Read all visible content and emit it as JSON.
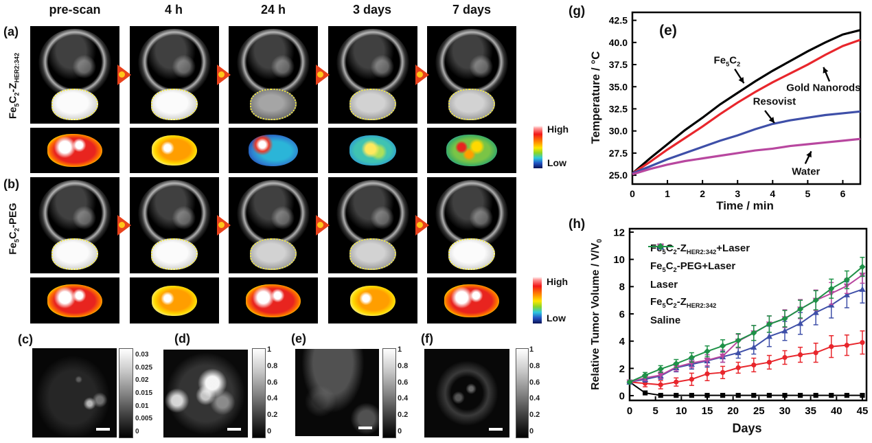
{
  "figure": {
    "timepoints": [
      "pre-scan",
      "4 h",
      "24 h",
      "3 days",
      "7 days"
    ],
    "panel_a": {
      "label": "(a)",
      "row_label_html": "Fe<sub>5</sub>C<sub>2</sub>-Z<sub>HER2:342</sub>",
      "colorbar": {
        "high": "High",
        "low": "Low"
      },
      "mri_tumor": [
        "bright",
        "bright",
        "dim",
        "medium",
        "medium"
      ],
      "heatmap": [
        "heat-hot",
        "heat-warm",
        "heat-cold",
        "heat-cool",
        "heat-mixed"
      ]
    },
    "panel_b": {
      "label": "(b)",
      "row_label_html": "Fe<sub>5</sub>C<sub>2</sub>-PEG",
      "colorbar": {
        "high": "High",
        "low": "Low"
      },
      "mri_tumor": [
        "bright",
        "bright",
        "medium",
        "medium",
        "bright"
      ],
      "heatmap": [
        "heat-hot",
        "heat-warm",
        "heat-hot",
        "heat-warm",
        "heat-hot"
      ]
    },
    "colormap_stops": [
      "#ffffff",
      "#f21818",
      "#ff8a00",
      "#ffe600",
      "#8ad629",
      "#2ec9e0",
      "#2353c4",
      "#0a1254"
    ],
    "bottom_panels": [
      {
        "label": "(c)",
        "colorbar_ticks": [
          "0.03",
          "0.025",
          "0.02",
          "0.015",
          "0.01",
          "0.005",
          "0"
        ]
      },
      {
        "label": "(d)",
        "colorbar_ticks": [
          "1",
          "0.8",
          "0.6",
          "0.4",
          "0.2",
          "0"
        ]
      },
      {
        "label": "(e)",
        "colorbar_ticks": [
          "1",
          "0.8",
          "0.6",
          "0.4",
          "0.2",
          "0"
        ]
      },
      {
        "label": "(f)",
        "colorbar_ticks": [
          "1",
          "0.8",
          "0.6",
          "0.4",
          "0.2",
          "0"
        ]
      }
    ]
  },
  "chart_data": [
    {
      "id": "g",
      "outer_label": "(g)",
      "inner_label": "(e)",
      "type": "line",
      "xlabel": "Time / min",
      "ylabel": "Temperature / °C",
      "xlim": [
        0,
        6.5
      ],
      "ylim": [
        24.0,
        43.4
      ],
      "xticks": [
        0,
        1,
        2,
        3,
        4,
        5,
        6
      ],
      "xtick_labels": [
        "0",
        "1",
        "2",
        "3",
        "4",
        "5",
        "6"
      ],
      "yticks": [
        25.0,
        27.5,
        30.0,
        32.5,
        35.0,
        37.5,
        40.0,
        42.5
      ],
      "ytick_labels": [
        "25.0",
        "27.5",
        "30.0",
        "32.5",
        "35.0",
        "37.5",
        "40.0",
        "42.5"
      ],
      "x": [
        0,
        0.5,
        1,
        1.5,
        2,
        2.5,
        3,
        3.5,
        4,
        4.5,
        5,
        5.5,
        6,
        6.5
      ],
      "series": [
        {
          "name": "Fe5C2",
          "color": "#000000",
          "values": [
            25.2,
            26.9,
            28.5,
            30.1,
            31.5,
            33.0,
            34.3,
            35.6,
            36.8,
            37.9,
            39.0,
            40.0,
            40.9,
            41.4
          ]
        },
        {
          "name": "Gold Nanorods",
          "color": "#e8262c",
          "values": [
            25.2,
            26.5,
            27.9,
            29.2,
            30.5,
            31.9,
            33.2,
            34.4,
            35.5,
            36.5,
            37.5,
            38.6,
            39.6,
            40.3
          ]
        },
        {
          "name": "Resovist",
          "color": "#3e4fa8",
          "values": [
            25.2,
            26.0,
            26.8,
            27.5,
            28.2,
            28.9,
            29.5,
            30.2,
            30.8,
            31.2,
            31.5,
            31.8,
            32.0,
            32.2
          ]
        },
        {
          "name": "Water",
          "color": "#b8479f",
          "values": [
            25.1,
            25.7,
            26.2,
            26.6,
            26.9,
            27.2,
            27.5,
            27.8,
            28.0,
            28.3,
            28.5,
            28.7,
            28.9,
            29.1
          ]
        }
      ],
      "annotations": [
        {
          "html": "Fe<sub>5</sub>C<sub>2</sub>",
          "x": 2.7,
          "y": 37.9,
          "arrow": [
            2.92,
            37.0,
            3.18,
            35.4
          ]
        },
        {
          "html": "Gold Nanorods",
          "x": 5.45,
          "y": 34.9,
          "arrow": [
            5.62,
            35.6,
            5.45,
            37.2
          ]
        },
        {
          "html": "Resovist",
          "x": 4.05,
          "y": 33.3,
          "arrow": [
            3.78,
            32.3,
            4.05,
            30.9
          ]
        },
        {
          "html": "Water",
          "x": 4.95,
          "y": 25.4,
          "arrow": [
            4.93,
            26.3,
            5.1,
            27.7
          ]
        }
      ]
    },
    {
      "id": "h",
      "outer_label": "(h)",
      "type": "line",
      "xlabel": "Days",
      "ylabel_html": "Relative Tumor Volume / V/V<sub>0</sub>",
      "xlim": [
        0,
        45.8
      ],
      "ylim": [
        -0.35,
        12.25
      ],
      "xticks": [
        0,
        5,
        10,
        15,
        20,
        25,
        30,
        35,
        40,
        45
      ],
      "xtick_labels": [
        "0",
        "5",
        "10",
        "15",
        "20",
        "25",
        "30",
        "35",
        "40",
        "45"
      ],
      "yticks": [
        0,
        2,
        4,
        6,
        8,
        10,
        12
      ],
      "ytick_labels": [
        "0",
        "2",
        "4",
        "6",
        "8",
        "10",
        "12"
      ],
      "x": [
        0,
        3,
        6,
        9,
        12,
        15,
        18,
        21,
        24,
        27,
        30,
        33,
        36,
        39,
        42,
        45
      ],
      "series": [
        {
          "name_html": "Fe<sub>5</sub>C<sub>2</sub>-Z<sub>HER2:342</sub>+Laser",
          "color": "#000000",
          "marker": "square",
          "values": [
            1,
            0.2,
            0.02,
            0.02,
            0.02,
            0.02,
            0.02,
            0.02,
            0.02,
            0.02,
            0.02,
            0.02,
            0.02,
            0.02,
            0.02,
            0.02
          ],
          "err": [
            0,
            0,
            0,
            0,
            0,
            0,
            0,
            0,
            0,
            0,
            0,
            0,
            0,
            0,
            0,
            0
          ]
        },
        {
          "name_html": "Fe<sub>5</sub>C<sub>2</sub>-PEG+Laser",
          "color": "#e8262c",
          "marker": "circle",
          "values": [
            1,
            0.9,
            0.8,
            1.0,
            1.2,
            1.6,
            1.7,
            2.05,
            2.25,
            2.45,
            2.8,
            3.0,
            3.15,
            3.6,
            3.7,
            3.9
          ],
          "err": [
            0,
            0.25,
            0.3,
            0.3,
            0.45,
            0.5,
            0.45,
            0.4,
            0.5,
            0.5,
            0.5,
            0.55,
            0.7,
            0.8,
            0.75,
            0.85
          ]
        },
        {
          "name_html": "Laser",
          "color": "#3e4fa8",
          "marker": "triangle-up",
          "values": [
            1,
            1.2,
            1.45,
            2.05,
            2.3,
            2.55,
            2.85,
            3.15,
            3.55,
            4.35,
            4.75,
            5.3,
            6.1,
            6.65,
            7.4,
            7.8
          ],
          "err": [
            0,
            0.2,
            0.25,
            0.3,
            0.35,
            0.45,
            0.4,
            0.4,
            0.5,
            0.75,
            0.7,
            0.8,
            0.9,
            0.95,
            0.95,
            1.0
          ]
        },
        {
          "name_html": "Fe<sub>5</sub>C<sub>2</sub>-Z<sub>HER2:342</sub>",
          "color": "#b8479f",
          "marker": "triangle-down",
          "values": [
            1,
            1.3,
            1.5,
            2.1,
            2.4,
            2.6,
            2.9,
            4.0,
            4.6,
            5.25,
            5.65,
            6.35,
            7.0,
            7.5,
            8.05,
            8.85
          ],
          "err": [
            0,
            0.2,
            0.25,
            0.3,
            0.35,
            0.4,
            0.45,
            0.5,
            0.55,
            0.6,
            0.65,
            0.7,
            0.75,
            0.8,
            0.55,
            0.6
          ]
        },
        {
          "name_html": "Saline",
          "color": "#1e9147",
          "marker": "diamond",
          "values": [
            1,
            1.5,
            1.95,
            2.35,
            2.8,
            3.25,
            3.65,
            4.05,
            4.6,
            5.25,
            5.65,
            6.35,
            7.0,
            7.85,
            8.5,
            9.45
          ],
          "err": [
            0,
            0.2,
            0.25,
            0.3,
            0.35,
            0.4,
            0.45,
            0.5,
            0.55,
            0.6,
            0.6,
            0.65,
            0.7,
            0.7,
            0.65,
            0.7
          ]
        }
      ]
    }
  ]
}
